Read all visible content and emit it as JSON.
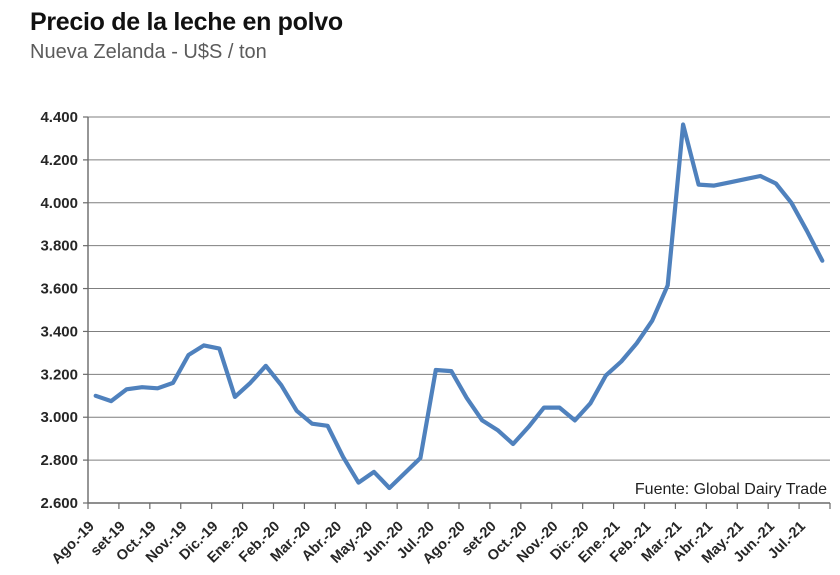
{
  "header": {
    "title": "Precio de la leche en polvo",
    "subtitle": "Nueva Zelanda - U$S / ton"
  },
  "source_note": "Fuente: Global Dairy Trade",
  "colors": {
    "line": "#4f81bd",
    "grid": "#7f7f7f",
    "axis": "#6a6a6a",
    "tick_text": "#262626",
    "title_text": "#111111",
    "subtitle_text": "#5b5b5b"
  },
  "chart_data": {
    "type": "line",
    "title": "Precio de la leche en polvo",
    "subtitle": "Nueva Zelanda - U$S / ton",
    "source": "Fuente: Global Dairy Trade",
    "ylabel": "U$S / ton",
    "ylim": [
      2600,
      4400
    ],
    "ytick_step": 200,
    "ytick_values": [
      2600,
      2800,
      3000,
      3200,
      3400,
      3600,
      3800,
      4000,
      4200,
      4400
    ],
    "ytick_labels": [
      "2.600",
      "2.800",
      "3.000",
      "3.200",
      "3.400",
      "3.600",
      "3.800",
      "4.000",
      "4.200",
      "4.400"
    ],
    "x_labels": [
      "Ago.-19",
      "set-19",
      "Oct.-19",
      "Nov.-19",
      "Dic.-19",
      "Ene.-20",
      "Feb.-20",
      "Mar.-20",
      "Abr.-20",
      "May.-20",
      "Jun.-20",
      "Jul.-20",
      "Ago.-20",
      "set-20",
      "Oct.-20",
      "Nov.-20",
      "Dic.-20",
      "Ene.-21",
      "Feb.-21",
      "Mar.-21",
      "Abr.-21",
      "May.-21",
      "Jun.-21",
      "Jul.-21"
    ],
    "points_per_category": 2,
    "grid": true,
    "legend_position": "none",
    "series": [
      {
        "name": "Precio de la leche en polvo",
        "color": "#4f81bd",
        "line_width": 4.2,
        "values": [
          3100,
          3075,
          3130,
          3140,
          3135,
          3160,
          3290,
          3335,
          3320,
          3095,
          3160,
          3240,
          3150,
          3030,
          2970,
          2960,
          2815,
          2695,
          2745,
          2670,
          2740,
          2810,
          3220,
          3215,
          3090,
          2985,
          2940,
          2875,
          2955,
          3045,
          3045,
          2985,
          3065,
          3195,
          3260,
          3345,
          3450,
          3615,
          4365,
          4085,
          4080,
          4095,
          4110,
          4125,
          4090,
          4000,
          3870,
          3730
        ]
      }
    ]
  }
}
